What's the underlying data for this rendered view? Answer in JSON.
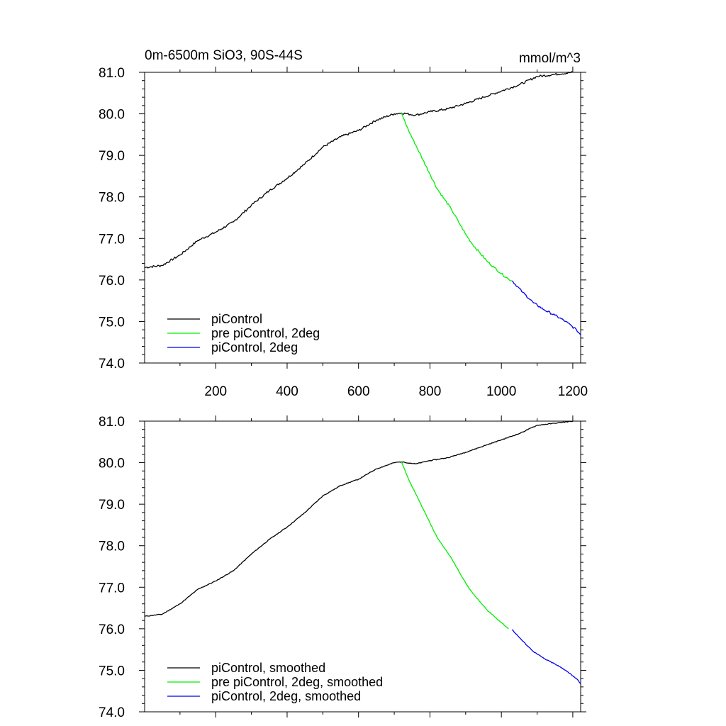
{
  "chart_data": [
    {
      "type": "line",
      "title_left": "0m-6500m SiO3, 90S-44S",
      "title_right": "mmol/m^3",
      "xlim": [
        1,
        1222
      ],
      "ylim": [
        74.0,
        81.0
      ],
      "x_ticks": [
        200,
        400,
        600,
        800,
        1000,
        1200
      ],
      "x_tick_labels": [
        "200",
        "400",
        "600",
        "800",
        "1000",
        "1200"
      ],
      "y_ticks": [
        74.0,
        75.0,
        76.0,
        77.0,
        78.0,
        79.0,
        80.0,
        81.0
      ],
      "y_tick_labels": [
        "74.0",
        "75.0",
        "76.0",
        "77.0",
        "78.0",
        "79.0",
        "80.0",
        "81.0"
      ],
      "legend_position": "bottom-left",
      "series": [
        {
          "name": "piControl",
          "color": "#000000",
          "x": [
            1,
            50,
            100,
            150,
            200,
            250,
            300,
            350,
            400,
            450,
            500,
            550,
            600,
            650,
            700,
            720,
            760,
            800,
            850,
            900,
            950,
            1000,
            1050,
            1100,
            1150,
            1200
          ],
          "y": [
            76.3,
            76.35,
            76.6,
            76.95,
            77.15,
            77.4,
            77.8,
            78.15,
            78.45,
            78.8,
            79.2,
            79.45,
            79.6,
            79.85,
            80.0,
            80.02,
            79.97,
            80.05,
            80.12,
            80.25,
            80.4,
            80.55,
            80.7,
            80.9,
            80.95,
            81.0
          ]
        },
        {
          "name": "pre piControl, 2deg",
          "color": "#00ee00",
          "x": [
            720,
            740,
            760,
            780,
            800,
            820,
            840,
            860,
            880,
            900,
            920,
            940,
            960,
            980,
            1000,
            1020,
            1030
          ],
          "y": [
            80.02,
            79.6,
            79.25,
            78.9,
            78.55,
            78.2,
            77.95,
            77.7,
            77.4,
            77.1,
            76.85,
            76.65,
            76.45,
            76.3,
            76.15,
            76.02,
            75.98
          ]
        },
        {
          "name": "piControl, 2deg",
          "color": "#0000ee",
          "x": [
            1030,
            1060,
            1090,
            1120,
            1150,
            1180,
            1210,
            1222
          ],
          "y": [
            75.98,
            75.7,
            75.45,
            75.28,
            75.15,
            75.0,
            74.8,
            74.68
          ]
        }
      ]
    },
    {
      "type": "line",
      "xlim": [
        1,
        1222
      ],
      "ylim": [
        74.0,
        81.0
      ],
      "y_ticks": [
        74.0,
        75.0,
        76.0,
        77.0,
        78.0,
        79.0,
        80.0,
        81.0
      ],
      "y_tick_labels": [
        "74.0",
        "75.0",
        "76.0",
        "77.0",
        "78.0",
        "79.0",
        "80.0",
        "81.0"
      ],
      "legend_position": "bottom-left",
      "series": [
        {
          "name": "piControl, smoothed",
          "color": "#000000",
          "x": [
            1,
            50,
            100,
            150,
            200,
            250,
            300,
            350,
            400,
            450,
            500,
            550,
            600,
            650,
            700,
            720,
            760,
            800,
            850,
            900,
            950,
            1000,
            1050,
            1100,
            1150,
            1200
          ],
          "y": [
            76.3,
            76.35,
            76.6,
            76.95,
            77.15,
            77.4,
            77.8,
            78.15,
            78.45,
            78.8,
            79.2,
            79.45,
            79.6,
            79.85,
            80.0,
            80.02,
            79.97,
            80.05,
            80.12,
            80.25,
            80.4,
            80.55,
            80.7,
            80.9,
            80.95,
            81.0
          ]
        },
        {
          "name": "pre piControl, 2deg, smoothed",
          "color": "#00ee00",
          "x": [
            720,
            740,
            760,
            780,
            800,
            820,
            840,
            860,
            880,
            900,
            920,
            940,
            960,
            980,
            1000,
            1020
          ],
          "y": [
            80.02,
            79.6,
            79.25,
            78.9,
            78.55,
            78.2,
            77.95,
            77.7,
            77.4,
            77.1,
            76.85,
            76.65,
            76.45,
            76.3,
            76.15,
            76.0
          ]
        },
        {
          "name": "piControl, 2deg, smoothed",
          "color": "#0000ee",
          "x": [
            1030,
            1060,
            1090,
            1120,
            1150,
            1180,
            1210,
            1222
          ],
          "y": [
            75.98,
            75.7,
            75.45,
            75.28,
            75.15,
            75.0,
            74.8,
            74.68
          ]
        }
      ]
    }
  ]
}
